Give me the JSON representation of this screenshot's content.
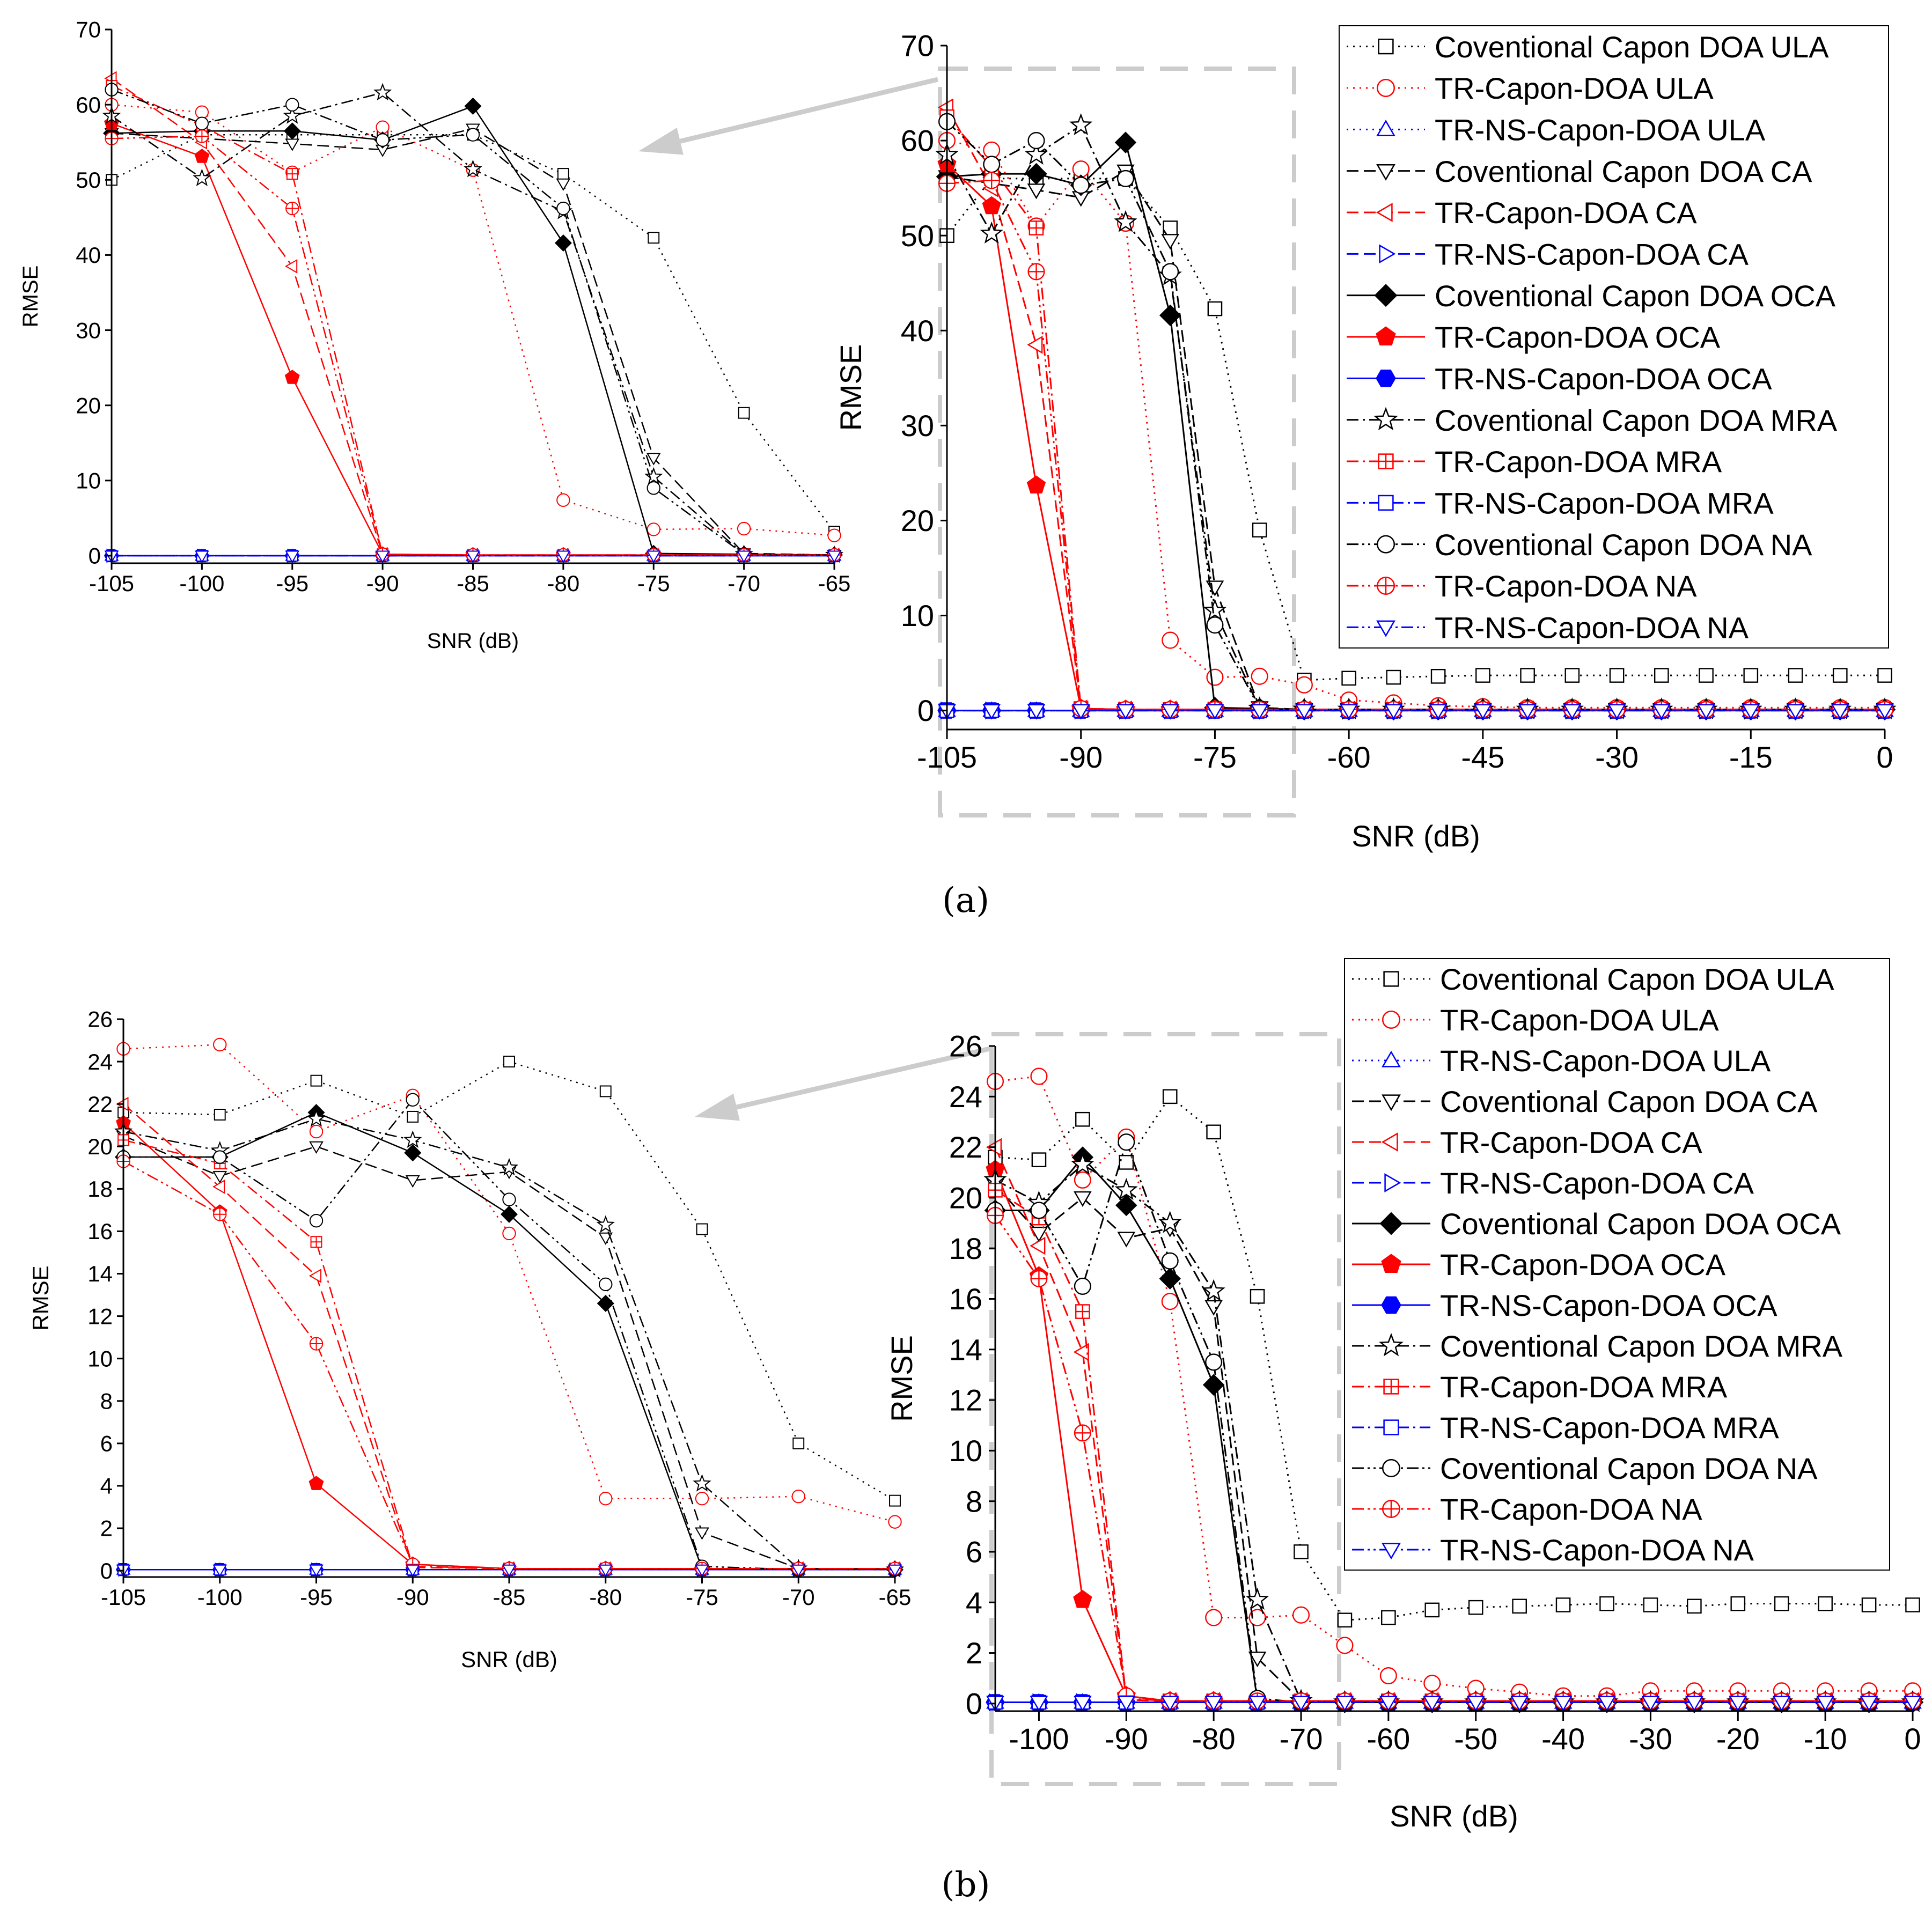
{
  "figure": {
    "captions": [
      "(a)",
      "(b)"
    ],
    "symbol_size_unit": 9
  },
  "series_styles": [
    {
      "label": "Coventional Capon DOA ULA",
      "color": "#000000",
      "dash": "dot",
      "marker": "square",
      "filled": false
    },
    {
      "label": "TR-Capon-DOA ULA",
      "color": "#ff0000",
      "dash": "dot",
      "marker": "circle",
      "filled": false
    },
    {
      "label": "TR-NS-Capon-DOA ULA",
      "color": "#0000ff",
      "dash": "dot",
      "marker": "triangle-up",
      "filled": false
    },
    {
      "label": "Coventional Capon DOA CA",
      "color": "#000000",
      "dash": "dash",
      "marker": "triangle-down",
      "filled": false
    },
    {
      "label": "TR-Capon-DOA CA",
      "color": "#ff0000",
      "dash": "dash",
      "marker": "triangle-left",
      "filled": false
    },
    {
      "label": "TR-NS-Capon-DOA CA",
      "color": "#0000ff",
      "dash": "dash",
      "marker": "triangle-right",
      "filled": false
    },
    {
      "label": "Coventional Capon DOA OCA",
      "color": "#000000",
      "dash": "solid",
      "marker": "diamond",
      "filled": true
    },
    {
      "label": "TR-Capon-DOA OCA",
      "color": "#ff0000",
      "dash": "solid",
      "marker": "pentagon",
      "filled": true
    },
    {
      "label": "TR-NS-Capon-DOA OCA",
      "color": "#0000ff",
      "dash": "solid",
      "marker": "hexagon",
      "filled": true
    },
    {
      "label": "Coventional Capon DOA MRA",
      "color": "#000000",
      "dash": "dashdot",
      "marker": "star",
      "filled": false
    },
    {
      "label": "TR-Capon-DOA MRA",
      "color": "#ff0000",
      "dash": "dashdot",
      "marker": "square-plus",
      "filled": false
    },
    {
      "label": "TR-NS-Capon-DOA MRA",
      "color": "#0000ff",
      "dash": "dashdot",
      "marker": "square",
      "filled": false
    },
    {
      "label": "Coventional Capon DOA NA",
      "color": "#000000",
      "dash": "dashdotdot",
      "marker": "circle",
      "filled": false
    },
    {
      "label": "TR-Capon-DOA NA",
      "color": "#ff0000",
      "dash": "dashdotdot",
      "marker": "circle-plus",
      "filled": false
    },
    {
      "label": "TR-NS-Capon-DOA NA",
      "color": "#0000ff",
      "dash": "dashdotdot",
      "marker": "triangle-down",
      "filled": false
    }
  ],
  "chart_data": [
    {
      "id": "a",
      "type": "line",
      "caption": "(a)",
      "xlabel": "SNR (dB)",
      "ylabel": "RMSE",
      "x": [
        -105,
        -100,
        -95,
        -90,
        -85,
        -80,
        -75,
        -70,
        -65,
        -60,
        -55,
        -50,
        -45,
        -40,
        -35,
        -30,
        -25,
        -20,
        -15,
        -10,
        -5,
        0
      ],
      "xlim": [
        -105,
        0
      ],
      "ylim": [
        -2,
        70
      ],
      "xticks": [
        -105,
        -90,
        -75,
        -60,
        -45,
        -30,
        -15,
        0
      ],
      "yticks": [
        0,
        10,
        20,
        30,
        40,
        50,
        60,
        70
      ],
      "inset": {
        "xlim": [
          -105,
          -65
        ],
        "ylim": [
          -1,
          70
        ],
        "xticks": [
          -105,
          -100,
          -95,
          -90,
          -85,
          -80,
          -75,
          -70,
          -65
        ],
        "yticks": [
          0,
          10,
          20,
          30,
          40,
          50,
          60,
          70
        ],
        "xlabel": "SNR (dB)",
        "ylabel": "RMSE"
      },
      "series": [
        {
          "name": "Coventional Capon DOA ULA",
          "values": [
            50,
            56,
            56,
            56,
            56,
            50.8,
            42.3,
            19,
            3.2,
            3.4,
            3.5,
            3.6,
            3.7,
            3.7,
            3.7,
            3.7,
            3.7,
            3.7,
            3.7,
            3.7,
            3.7,
            3.7
          ]
        },
        {
          "name": "TR-Capon-DOA ULA",
          "values": [
            60,
            59,
            51,
            57,
            51.3,
            7.4,
            3.5,
            3.6,
            2.7,
            1.1,
            0.8,
            0.5,
            0.4,
            0.3,
            0.3,
            0.3,
            0.3,
            0.3,
            0.3,
            0.3,
            0.3,
            0.3
          ]
        },
        {
          "name": "TR-NS-Capon-DOA ULA",
          "values": [
            0,
            0,
            0,
            0,
            0,
            0,
            0,
            0,
            0,
            0,
            0,
            0,
            0,
            0,
            0,
            0,
            0,
            0,
            0,
            0,
            0,
            0
          ]
        },
        {
          "name": "Coventional Capon DOA CA",
          "values": [
            56.2,
            55.5,
            54.8,
            54,
            56.8,
            49.5,
            13,
            0.3,
            0.1,
            0.1,
            0.1,
            0.1,
            0.1,
            0.1,
            0.1,
            0.1,
            0.1,
            0.1,
            0.1,
            0.1,
            0.1,
            0.1
          ]
        },
        {
          "name": "TR-Capon-DOA CA",
          "values": [
            63.5,
            55,
            38.5,
            0.2,
            0.1,
            0.1,
            0.1,
            0.1,
            0.1,
            0.1,
            0.1,
            0.1,
            0.1,
            0.1,
            0.1,
            0.1,
            0.1,
            0.1,
            0.1,
            0.1,
            0.1,
            0.1
          ]
        },
        {
          "name": "TR-NS-Capon-DOA CA",
          "values": [
            0,
            0,
            0,
            0,
            0,
            0,
            0,
            0,
            0,
            0,
            0,
            0,
            0,
            0,
            0,
            0,
            0,
            0,
            0,
            0,
            0,
            0
          ]
        },
        {
          "name": "Coventional Capon DOA OCA",
          "values": [
            56.2,
            56.5,
            56.5,
            55.3,
            59.8,
            41.6,
            0.3,
            0.2,
            0.1,
            0.1,
            0.1,
            0.1,
            0.1,
            0.1,
            0.1,
            0.1,
            0.1,
            0.1,
            0.1,
            0.1,
            0.1,
            0.1
          ]
        },
        {
          "name": "TR-Capon-DOA OCA",
          "values": [
            57.5,
            53.1,
            23.7,
            0.2,
            0.1,
            0.1,
            0.1,
            0.1,
            0.1,
            0.1,
            0.1,
            0.1,
            0.1,
            0.1,
            0.1,
            0.1,
            0.1,
            0.1,
            0.1,
            0.1,
            0.1,
            0.1
          ]
        },
        {
          "name": "TR-NS-Capon-DOA OCA",
          "values": [
            0,
            0,
            0,
            0,
            0,
            0,
            0,
            0,
            0,
            0,
            0,
            0,
            0,
            0,
            0,
            0,
            0,
            0,
            0,
            0,
            0,
            0
          ]
        },
        {
          "name": "Coventional Capon DOA MRA",
          "values": [
            58.5,
            50.2,
            58.5,
            61.6,
            51.4,
            45.8,
            10.5,
            0.2,
            0.1,
            0.1,
            0.1,
            0.1,
            0.1,
            0.1,
            0.1,
            0.1,
            0.1,
            0.1,
            0.1,
            0.1,
            0.1,
            0.1
          ]
        },
        {
          "name": "TR-Capon-DOA MRA",
          "values": [
            62.5,
            57.2,
            50.8,
            0.2,
            0.1,
            0.1,
            0.1,
            0.1,
            0.1,
            0.1,
            0.1,
            0.1,
            0.1,
            0.1,
            0.1,
            0.1,
            0.1,
            0.1,
            0.1,
            0.1,
            0.1,
            0.1
          ]
        },
        {
          "name": "TR-NS-Capon-DOA MRA",
          "values": [
            0,
            0,
            0,
            0,
            0,
            0,
            0,
            0,
            0,
            0,
            0,
            0,
            0,
            0,
            0,
            0,
            0,
            0,
            0,
            0,
            0,
            0
          ]
        },
        {
          "name": "Coventional Capon DOA NA",
          "values": [
            62,
            57.5,
            60,
            55.3,
            56,
            46.2,
            9,
            0.2,
            0.1,
            0.1,
            0.1,
            0.1,
            0.1,
            0.1,
            0.1,
            0.1,
            0.1,
            0.1,
            0.1,
            0.1,
            0.1,
            0.1
          ]
        },
        {
          "name": "TR-Capon-DOA NA",
          "values": [
            55.5,
            55.8,
            46.2,
            0.2,
            0.1,
            0.1,
            0.1,
            0.1,
            0.1,
            0.1,
            0.1,
            0.1,
            0.1,
            0.1,
            0.1,
            0.1,
            0.1,
            0.1,
            0.1,
            0.1,
            0.1,
            0.1
          ]
        },
        {
          "name": "TR-NS-Capon-DOA NA",
          "values": [
            0,
            0,
            0,
            0,
            0,
            0,
            0,
            0,
            0,
            0,
            0,
            0,
            0,
            0,
            0,
            0,
            0,
            0,
            0,
            0,
            0,
            0
          ]
        }
      ]
    },
    {
      "id": "b",
      "type": "line",
      "caption": "(b)",
      "xlabel": "SNR (dB)",
      "ylabel": "RMSE",
      "x": [
        -105,
        -100,
        -95,
        -90,
        -85,
        -80,
        -75,
        -70,
        -65,
        -60,
        -55,
        -50,
        -45,
        -40,
        -35,
        -30,
        -25,
        -20,
        -15,
        -10,
        -5,
        0
      ],
      "xlim": [
        -105,
        0
      ],
      "ylim": [
        -0.3,
        26
      ],
      "xticks": [
        -100,
        -90,
        -80,
        -70,
        -60,
        -50,
        -40,
        -30,
        -20,
        -10,
        0
      ],
      "yticks": [
        0,
        2,
        4,
        6,
        8,
        10,
        12,
        14,
        16,
        18,
        20,
        22,
        24,
        26
      ],
      "inset": {
        "xlim": [
          -105,
          -65
        ],
        "ylim": [
          -0.3,
          26
        ],
        "xticks": [
          -105,
          -100,
          -95,
          -90,
          -85,
          -80,
          -75,
          -70,
          -65
        ],
        "yticks": [
          0,
          2,
          4,
          6,
          8,
          10,
          12,
          14,
          16,
          18,
          20,
          22,
          24,
          26
        ],
        "xlabel": "SNR (dB)",
        "ylabel": "RMSE"
      },
      "series": [
        {
          "name": "Coventional Capon DOA ULA",
          "values": [
            21.6,
            21.5,
            23.1,
            21.4,
            24,
            22.6,
            16.1,
            6,
            3.3,
            3.4,
            3.7,
            3.8,
            3.85,
            3.9,
            3.95,
            3.9,
            3.85,
            3.95,
            3.95,
            3.95,
            3.9,
            3.9
          ]
        },
        {
          "name": "TR-Capon-DOA ULA",
          "values": [
            24.6,
            24.8,
            20.7,
            22.4,
            15.9,
            3.4,
            3.4,
            3.5,
            2.3,
            1.1,
            0.8,
            0.6,
            0.45,
            0.3,
            0.3,
            0.5,
            0.5,
            0.5,
            0.5,
            0.5,
            0.5,
            0.5
          ]
        },
        {
          "name": "TR-NS-Capon-DOA ULA",
          "values": [
            0.05,
            0.05,
            0.05,
            0.05,
            0.05,
            0.05,
            0.05,
            0.05,
            0.05,
            0.05,
            0.05,
            0.05,
            0.05,
            0.05,
            0.05,
            0.05,
            0.05,
            0.05,
            0.05,
            0.05,
            0.05,
            0.05
          ]
        },
        {
          "name": "Coventional Capon DOA CA",
          "values": [
            20.5,
            18.6,
            20,
            18.4,
            18.8,
            15.7,
            1.8,
            0.1,
            0.05,
            0.05,
            0.05,
            0.05,
            0.05,
            0.05,
            0.05,
            0.05,
            0.05,
            0.05,
            0.05,
            0.05,
            0.05,
            0.05
          ]
        },
        {
          "name": "TR-Capon-DOA CA",
          "values": [
            22,
            18.1,
            13.9,
            0.15,
            0.1,
            0.1,
            0.1,
            0.1,
            0.1,
            0.1,
            0.1,
            0.1,
            0.1,
            0.1,
            0.1,
            0.1,
            0.1,
            0.1,
            0.1,
            0.1,
            0.1,
            0.1
          ]
        },
        {
          "name": "TR-NS-Capon-DOA CA",
          "values": [
            0.05,
            0.05,
            0.05,
            0.05,
            0.05,
            0.05,
            0.05,
            0.05,
            0.05,
            0.05,
            0.05,
            0.05,
            0.05,
            0.05,
            0.05,
            0.05,
            0.05,
            0.05,
            0.05,
            0.05,
            0.05,
            0.05
          ]
        },
        {
          "name": "Coventional Capon DOA OCA",
          "values": [
            19.5,
            19.5,
            21.6,
            19.7,
            16.8,
            12.6,
            0.1,
            0.05,
            0.05,
            0.05,
            0.05,
            0.05,
            0.05,
            0.05,
            0.05,
            0.05,
            0.05,
            0.05,
            0.05,
            0.05,
            0.05,
            0.05
          ]
        },
        {
          "name": "TR-Capon-DOA OCA",
          "values": [
            21.1,
            16.9,
            4.1,
            0.3,
            0.1,
            0.1,
            0.1,
            0.1,
            0.1,
            0.1,
            0.1,
            0.1,
            0.1,
            0.1,
            0.1,
            0.1,
            0.1,
            0.1,
            0.1,
            0.1,
            0.1,
            0.1
          ]
        },
        {
          "name": "TR-NS-Capon-DOA OCA",
          "values": [
            0.05,
            0.05,
            0.05,
            0.05,
            0.05,
            0.05,
            0.05,
            0.05,
            0.05,
            0.05,
            0.05,
            0.05,
            0.05,
            0.05,
            0.05,
            0.05,
            0.05,
            0.05,
            0.05,
            0.05,
            0.05,
            0.05
          ]
        },
        {
          "name": "Coventional Capon DOA MRA",
          "values": [
            20.7,
            19.8,
            21.3,
            20.3,
            19,
            16.3,
            4.1,
            0.1,
            0.05,
            0.05,
            0.05,
            0.05,
            0.05,
            0.05,
            0.05,
            0.05,
            0.05,
            0.05,
            0.05,
            0.05,
            0.05,
            0.05
          ]
        },
        {
          "name": "TR-Capon-DOA MRA",
          "values": [
            20.3,
            19.2,
            15.5,
            0.2,
            0.1,
            0.1,
            0.1,
            0.1,
            0.1,
            0.1,
            0.1,
            0.1,
            0.1,
            0.1,
            0.1,
            0.1,
            0.1,
            0.1,
            0.1,
            0.1,
            0.1,
            0.1
          ]
        },
        {
          "name": "TR-NS-Capon-DOA MRA",
          "values": [
            0.05,
            0.05,
            0.05,
            0.05,
            0.05,
            0.05,
            0.05,
            0.05,
            0.05,
            0.05,
            0.05,
            0.05,
            0.05,
            0.05,
            0.05,
            0.05,
            0.05,
            0.05,
            0.05,
            0.05,
            0.05,
            0.05
          ]
        },
        {
          "name": "Coventional Capon DOA NA",
          "values": [
            19.5,
            19.5,
            16.5,
            22.2,
            17.5,
            13.5,
            0.2,
            0.05,
            0.05,
            0.05,
            0.05,
            0.05,
            0.05,
            0.05,
            0.05,
            0.05,
            0.05,
            0.05,
            0.05,
            0.05,
            0.05,
            0.05
          ]
        },
        {
          "name": "TR-Capon-DOA NA",
          "values": [
            19.3,
            16.8,
            10.7,
            0.3,
            0.1,
            0.1,
            0.1,
            0.1,
            0.1,
            0.1,
            0.1,
            0.1,
            0.1,
            0.1,
            0.1,
            0.1,
            0.1,
            0.1,
            0.1,
            0.1,
            0.1,
            0.1
          ]
        },
        {
          "name": "TR-NS-Capon-DOA NA",
          "values": [
            0.05,
            0.05,
            0.05,
            0.05,
            0.05,
            0.05,
            0.05,
            0.05,
            0.05,
            0.05,
            0.05,
            0.05,
            0.05,
            0.05,
            0.05,
            0.05,
            0.05,
            0.05,
            0.05,
            0.05,
            0.05,
            0.05
          ]
        }
      ]
    }
  ]
}
